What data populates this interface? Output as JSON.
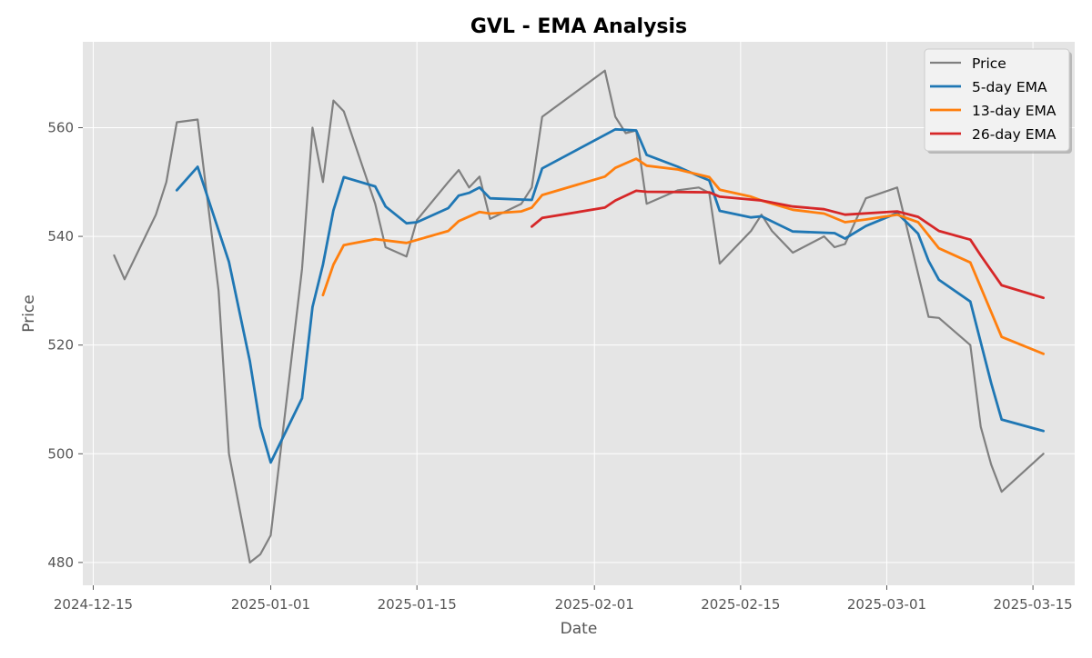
{
  "chart_data": {
    "type": "line",
    "title": "GVL - EMA Analysis",
    "xlabel": "Date",
    "ylabel": "Price",
    "xlim": [
      "2024-12-14",
      "2025-03-19"
    ],
    "ylim": [
      475.8,
      575.8
    ],
    "x_ticks": [
      "2024-12-15",
      "2025-01-01",
      "2025-01-15",
      "2025-02-01",
      "2025-02-15",
      "2025-03-01",
      "2025-03-15"
    ],
    "y_ticks": [
      480,
      500,
      520,
      540,
      560
    ],
    "grid": true,
    "legend_position": "top-right",
    "series": [
      {
        "name": "Price",
        "color": "#808080",
        "points": [
          [
            "2024-12-17",
            536.5
          ],
          [
            "2024-12-18",
            532.1
          ],
          [
            "2024-12-21",
            544.0
          ],
          [
            "2024-12-22",
            550.0
          ],
          [
            "2024-12-23",
            561.0
          ],
          [
            "2024-12-25",
            561.5
          ],
          [
            "2024-12-27",
            530.0
          ],
          [
            "2024-12-28",
            500.0
          ],
          [
            "2024-12-30",
            480.0
          ],
          [
            "2024-12-31",
            481.5
          ],
          [
            "2025-01-01",
            485.0
          ],
          [
            "2025-01-04",
            534.0
          ],
          [
            "2025-01-05",
            560.0
          ],
          [
            "2025-01-06",
            550.0
          ],
          [
            "2025-01-07",
            565.0
          ],
          [
            "2025-01-08",
            563.0
          ],
          [
            "2025-01-11",
            546.0
          ],
          [
            "2025-01-12",
            538.0
          ],
          [
            "2025-01-14",
            536.3
          ],
          [
            "2025-01-15",
            543.0
          ],
          [
            "2025-01-18",
            550.0
          ],
          [
            "2025-01-19",
            552.2
          ],
          [
            "2025-01-20",
            549.0
          ],
          [
            "2025-01-21",
            551.0
          ],
          [
            "2025-01-22",
            543.2
          ],
          [
            "2025-01-25",
            546.0
          ],
          [
            "2025-01-26",
            549.0
          ],
          [
            "2025-01-27",
            562.0
          ],
          [
            "2025-02-02",
            570.5
          ],
          [
            "2025-02-03",
            562.0
          ],
          [
            "2025-02-04",
            559.0
          ],
          [
            "2025-02-05",
            559.5
          ],
          [
            "2025-02-06",
            546.0
          ],
          [
            "2025-02-09",
            548.5
          ],
          [
            "2025-02-11",
            549.0
          ],
          [
            "2025-02-12",
            548.0
          ],
          [
            "2025-02-13",
            535.0
          ],
          [
            "2025-02-16",
            541.0
          ],
          [
            "2025-02-17",
            544.0
          ],
          [
            "2025-02-18",
            541.0
          ],
          [
            "2025-02-20",
            537.0
          ],
          [
            "2025-02-23",
            540.0
          ],
          [
            "2025-02-24",
            538.0
          ],
          [
            "2025-02-25",
            538.6
          ],
          [
            "2025-02-27",
            547.0
          ],
          [
            "2025-03-02",
            549.0
          ],
          [
            "2025-03-05",
            525.2
          ],
          [
            "2025-03-06",
            525.0
          ],
          [
            "2025-03-09",
            520.0
          ],
          [
            "2025-03-10",
            505.0
          ],
          [
            "2025-03-11",
            498.0
          ],
          [
            "2025-03-12",
            493.0
          ],
          [
            "2025-03-16",
            500.0
          ]
        ]
      },
      {
        "name": "5-day EMA",
        "color": "#1f77b4",
        "points": [
          [
            "2024-12-23",
            548.5
          ],
          [
            "2024-12-25",
            552.8
          ],
          [
            "2024-12-28",
            535.3
          ],
          [
            "2024-12-30",
            517.0
          ],
          [
            "2024-12-31",
            505.0
          ],
          [
            "2025-01-01",
            498.4
          ],
          [
            "2025-01-04",
            510.2
          ],
          [
            "2025-01-05",
            527.0
          ],
          [
            "2025-01-06",
            534.8
          ],
          [
            "2025-01-07",
            544.8
          ],
          [
            "2025-01-08",
            550.9
          ],
          [
            "2025-01-11",
            549.2
          ],
          [
            "2025-01-12",
            545.5
          ],
          [
            "2025-01-14",
            542.4
          ],
          [
            "2025-01-15",
            542.6
          ],
          [
            "2025-01-18",
            545.2
          ],
          [
            "2025-01-19",
            547.5
          ],
          [
            "2025-01-20",
            548.0
          ],
          [
            "2025-01-21",
            549.0
          ],
          [
            "2025-01-22",
            547.0
          ],
          [
            "2025-01-26",
            546.7
          ],
          [
            "2025-01-27",
            552.5
          ],
          [
            "2025-02-03",
            559.7
          ],
          [
            "2025-02-05",
            559.5
          ],
          [
            "2025-02-06",
            555.0
          ],
          [
            "2025-02-09",
            552.8
          ],
          [
            "2025-02-11",
            551.1
          ],
          [
            "2025-02-12",
            550.3
          ],
          [
            "2025-02-13",
            544.7
          ],
          [
            "2025-02-16",
            543.5
          ],
          [
            "2025-02-17",
            543.7
          ],
          [
            "2025-02-20",
            540.9
          ],
          [
            "2025-02-24",
            540.6
          ],
          [
            "2025-02-25",
            539.6
          ],
          [
            "2025-02-27",
            541.9
          ],
          [
            "2025-03-02",
            544.3
          ],
          [
            "2025-03-04",
            540.5
          ],
          [
            "2025-03-05",
            535.5
          ],
          [
            "2025-03-06",
            532.0
          ],
          [
            "2025-03-09",
            528.0
          ],
          [
            "2025-03-11",
            513.0
          ],
          [
            "2025-03-12",
            506.3
          ],
          [
            "2025-03-16",
            504.2
          ]
        ]
      },
      {
        "name": "13-day EMA",
        "color": "#ff7f0e",
        "points": [
          [
            "2025-01-06",
            529.2
          ],
          [
            "2025-01-07",
            534.8
          ],
          [
            "2025-01-08",
            538.4
          ],
          [
            "2025-01-11",
            539.5
          ],
          [
            "2025-01-14",
            538.8
          ],
          [
            "2025-01-18",
            541.0
          ],
          [
            "2025-01-19",
            542.8
          ],
          [
            "2025-01-21",
            544.5
          ],
          [
            "2025-01-22",
            544.2
          ],
          [
            "2025-01-25",
            544.6
          ],
          [
            "2025-01-26",
            545.3
          ],
          [
            "2025-01-27",
            547.6
          ],
          [
            "2025-02-02",
            551.0
          ],
          [
            "2025-02-03",
            552.6
          ],
          [
            "2025-02-05",
            554.3
          ],
          [
            "2025-02-06",
            553.0
          ],
          [
            "2025-02-09",
            552.3
          ],
          [
            "2025-02-12",
            550.9
          ],
          [
            "2025-02-13",
            548.6
          ],
          [
            "2025-02-16",
            547.3
          ],
          [
            "2025-02-17",
            546.6
          ],
          [
            "2025-02-20",
            544.9
          ],
          [
            "2025-02-23",
            544.2
          ],
          [
            "2025-02-25",
            542.6
          ],
          [
            "2025-02-27",
            543.1
          ],
          [
            "2025-03-02",
            544.0
          ],
          [
            "2025-03-04",
            542.6
          ],
          [
            "2025-03-06",
            537.8
          ],
          [
            "2025-03-09",
            535.2
          ],
          [
            "2025-03-12",
            521.5
          ],
          [
            "2025-03-16",
            518.4
          ]
        ]
      },
      {
        "name": "26-day EMA",
        "color": "#d62728",
        "points": [
          [
            "2025-01-26",
            541.8
          ],
          [
            "2025-01-27",
            543.4
          ],
          [
            "2025-02-02",
            545.3
          ],
          [
            "2025-02-03",
            546.6
          ],
          [
            "2025-02-05",
            548.4
          ],
          [
            "2025-02-06",
            548.2
          ],
          [
            "2025-02-12",
            548.1
          ],
          [
            "2025-02-13",
            547.3
          ],
          [
            "2025-02-17",
            546.6
          ],
          [
            "2025-02-20",
            545.5
          ],
          [
            "2025-02-23",
            545.0
          ],
          [
            "2025-02-25",
            544.0
          ],
          [
            "2025-03-02",
            544.6
          ],
          [
            "2025-03-04",
            543.6
          ],
          [
            "2025-03-06",
            541.0
          ],
          [
            "2025-03-09",
            539.4
          ],
          [
            "2025-03-10",
            536.5
          ],
          [
            "2025-03-12",
            531.0
          ],
          [
            "2025-03-16",
            528.7
          ]
        ]
      }
    ]
  }
}
